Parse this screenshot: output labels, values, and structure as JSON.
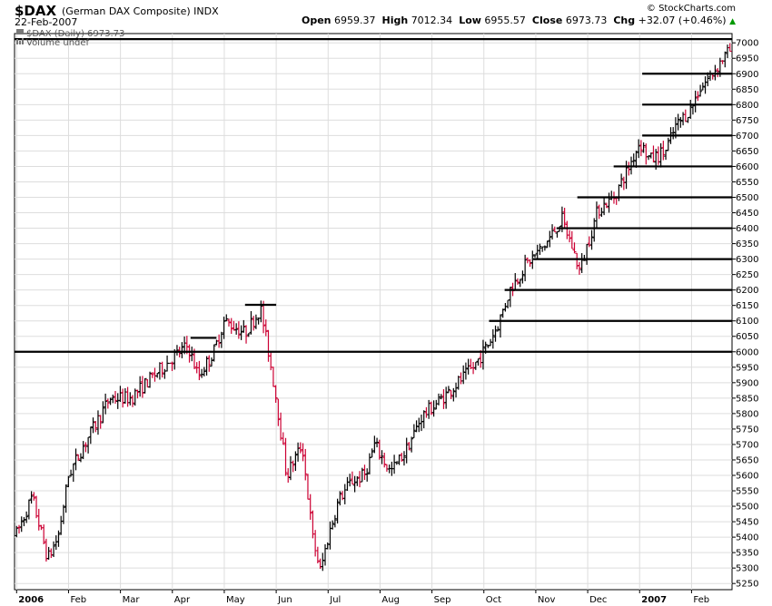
{
  "header": {
    "symbol": "$DAX",
    "name": "(German DAX Composite)",
    "exchange": "INDX",
    "date": "22-Feb-2007",
    "brand": "© StockCharts.com",
    "open_label": "Open",
    "open": "6959.37",
    "high_label": "High",
    "high": "7012.34",
    "low_label": "Low",
    "low": "6955.57",
    "close_label": "Close",
    "close": "6973.73",
    "chg_label": "Chg",
    "chg": "+32.07 (+0.46%)"
  },
  "legend": {
    "price": "$DAX (Daily) 6973.73",
    "volume": "Volume undef"
  },
  "chart_data": {
    "type": "ohlc",
    "title": "$DAX (German DAX Composite) INDX",
    "ylim": [
      5230,
      7030
    ],
    "y_ticks": [
      5250,
      5300,
      5350,
      5400,
      5450,
      5500,
      5550,
      5600,
      5650,
      5700,
      5750,
      5800,
      5850,
      5900,
      5950,
      6000,
      6050,
      6100,
      6150,
      6200,
      6250,
      6300,
      6350,
      6400,
      6450,
      6500,
      6550,
      6600,
      6650,
      6700,
      6750,
      6800,
      6850,
      6900,
      6950,
      7000
    ],
    "x_labels": [
      {
        "label": "2006",
        "bold": true,
        "month": 0
      },
      {
        "label": "Feb",
        "bold": false,
        "month": 1
      },
      {
        "label": "Mar",
        "bold": false,
        "month": 2
      },
      {
        "label": "Apr",
        "bold": false,
        "month": 3
      },
      {
        "label": "May",
        "bold": false,
        "month": 4
      },
      {
        "label": "Jun",
        "bold": false,
        "month": 5
      },
      {
        "label": "Jul",
        "bold": false,
        "month": 6
      },
      {
        "label": "Aug",
        "bold": false,
        "month": 7
      },
      {
        "label": "Sep",
        "bold": false,
        "month": 8
      },
      {
        "label": "Oct",
        "bold": false,
        "month": 9
      },
      {
        "label": "Nov",
        "bold": false,
        "month": 10
      },
      {
        "label": "Dec",
        "bold": false,
        "month": 11
      },
      {
        "label": "2007",
        "bold": true,
        "month": 12
      },
      {
        "label": "Feb",
        "bold": false,
        "month": 13
      }
    ],
    "x_range_months": [
      -0.04,
      13.78
    ],
    "path_anchors": [
      [
        0.0,
        5410
      ],
      [
        0.3,
        5530
      ],
      [
        0.6,
        5330
      ],
      [
        0.8,
        5400
      ],
      [
        1.0,
        5600
      ],
      [
        1.3,
        5700
      ],
      [
        1.8,
        5850
      ],
      [
        2.2,
        5850
      ],
      [
        2.5,
        5900
      ],
      [
        3.0,
        5980
      ],
      [
        3.3,
        6020
      ],
      [
        3.5,
        5920
      ],
      [
        3.8,
        6000
      ],
      [
        4.0,
        6100
      ],
      [
        4.4,
        6060
      ],
      [
        4.7,
        6140
      ],
      [
        4.85,
        6000
      ],
      [
        5.0,
        5850
      ],
      [
        5.2,
        5600
      ],
      [
        5.5,
        5700
      ],
      [
        5.7,
        5400
      ],
      [
        5.85,
        5290
      ],
      [
        6.0,
        5400
      ],
      [
        6.2,
        5520
      ],
      [
        6.45,
        5580
      ],
      [
        6.7,
        5600
      ],
      [
        6.9,
        5700
      ],
      [
        7.2,
        5610
      ],
      [
        7.5,
        5680
      ],
      [
        7.8,
        5790
      ],
      [
        8.2,
        5850
      ],
      [
        8.5,
        5900
      ],
      [
        8.8,
        5950
      ],
      [
        9.1,
        6030
      ],
      [
        9.3,
        6100
      ],
      [
        9.5,
        6200
      ],
      [
        9.8,
        6280
      ],
      [
        10.2,
        6350
      ],
      [
        10.5,
        6430
      ],
      [
        10.7,
        6340
      ],
      [
        10.85,
        6260
      ],
      [
        11.0,
        6350
      ],
      [
        11.2,
        6460
      ],
      [
        11.5,
        6500
      ],
      [
        11.8,
        6600
      ],
      [
        12.0,
        6680
      ],
      [
        12.2,
        6620
      ],
      [
        12.5,
        6650
      ],
      [
        12.7,
        6730
      ],
      [
        13.0,
        6790
      ],
      [
        13.15,
        6850
      ],
      [
        13.4,
        6900
      ],
      [
        13.6,
        6950
      ],
      [
        13.74,
        6974
      ]
    ],
    "horizontal_lines": [
      {
        "level": 7012,
        "from": -0.04,
        "to": 13.78
      },
      {
        "level": 6900,
        "from": 12.05,
        "to": 13.78
      },
      {
        "level": 6800,
        "from": 12.05,
        "to": 13.78
      },
      {
        "level": 6700,
        "from": 12.05,
        "to": 13.78
      },
      {
        "level": 6600,
        "from": 11.5,
        "to": 13.78
      },
      {
        "level": 6500,
        "from": 10.8,
        "to": 13.78
      },
      {
        "level": 6400,
        "from": 10.4,
        "to": 13.78
      },
      {
        "level": 6300,
        "from": 9.95,
        "to": 13.78
      },
      {
        "level": 6200,
        "from": 9.4,
        "to": 13.78
      },
      {
        "level": 6100,
        "from": 9.1,
        "to": 13.78
      },
      {
        "level": 6000,
        "from": -0.04,
        "to": 13.78
      },
      {
        "level": 6045,
        "from": 3.35,
        "to": 3.85
      },
      {
        "level": 6152,
        "from": 4.4,
        "to": 5.0
      }
    ],
    "colors": {
      "up": "#000000",
      "down": "#cc0033",
      "grid": "#dddddd",
      "line": "#000000"
    }
  }
}
